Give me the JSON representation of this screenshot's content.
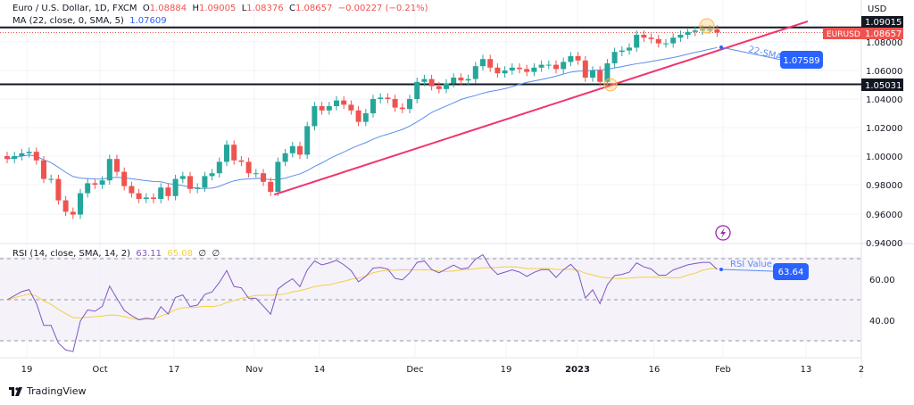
{
  "legend": {
    "symbol": "Euro / U.S. Dollar, 1D, FXCM",
    "o_label": "O",
    "o": "1.08884",
    "h_label": "H",
    "h": "1.09005",
    "l_label": "L",
    "l": "1.08376",
    "c_label": "C",
    "c": "1.08657",
    "change": "−0.00227 (−0.21%)",
    "ma": "MA (22, close, 0, SMA, 5)",
    "ma_value": "1.07609"
  },
  "rsi_legend": {
    "label": "RSI (14, close, SMA, 14, 2)",
    "rsi": "63.11",
    "sma": "65.08",
    "extra1": "∅",
    "extra2": "∅"
  },
  "price_axis": {
    "currency": "USD",
    "ticks": [
      "1.08000",
      "1.06000",
      "1.04000",
      "1.02000",
      "1.00000",
      "0.98000",
      "0.96000",
      "0.94000"
    ],
    "level_high": "1.09015",
    "level_low": "1.05031",
    "symbol_tag": "EURUSD",
    "last_price": "1.08657"
  },
  "rsi_axis": {
    "ticks": [
      "60.00",
      "40.00"
    ]
  },
  "time_axis": {
    "ticks": [
      "19",
      "Oct",
      "17",
      "Nov",
      "14",
      "Dec",
      "19",
      "2023",
      "16",
      "Feb",
      "13",
      "2"
    ]
  },
  "annotations": {
    "sma_label": "22-SMA",
    "sma_value": "1.07589",
    "rsi_label": "RSI Value",
    "rsi_value": "63.64"
  },
  "branding": {
    "logo": "TradingView"
  },
  "colors": {
    "up": "#26a69a",
    "down": "#ef5350",
    "ma": "#5b8def",
    "trend": "#f0356b",
    "rsi": "#7e57c2",
    "rsi_sma": "#f4d03f",
    "label_blue": "#2962ff"
  },
  "chart_data": {
    "type": "candlestick",
    "symbol": "EURUSD",
    "timeframe": "1D",
    "ylim": [
      0.94,
      1.1
    ],
    "rsi_levels": [
      70,
      30
    ],
    "horizontal_levels": [
      1.09015,
      1.05031
    ],
    "trendline": {
      "from": [
        "2022-11-03",
        0.973
      ],
      "to": [
        "2023-02-14",
        1.0944
      ]
    },
    "closes": [
      [
        "2022-09-14",
        0.998
      ],
      [
        "2022-09-15",
        1.0
      ],
      [
        "2022-09-16",
        1.002
      ],
      [
        "2022-09-19",
        1.003
      ],
      [
        "2022-09-20",
        0.997
      ],
      [
        "2022-09-21",
        0.984
      ],
      [
        "2022-09-22",
        0.984
      ],
      [
        "2022-09-23",
        0.969
      ],
      [
        "2022-09-26",
        0.961
      ],
      [
        "2022-09-27",
        0.959
      ],
      [
        "2022-09-28",
        0.974
      ],
      [
        "2022-09-29",
        0.981
      ],
      [
        "2022-09-30",
        0.98
      ],
      [
        "2022-10-03",
        0.983
      ],
      [
        "2022-10-04",
        0.998
      ],
      [
        "2022-10-05",
        0.989
      ],
      [
        "2022-10-06",
        0.979
      ],
      [
        "2022-10-07",
        0.974
      ],
      [
        "2022-10-10",
        0.97
      ],
      [
        "2022-10-11",
        0.971
      ],
      [
        "2022-10-12",
        0.97
      ],
      [
        "2022-10-13",
        0.978
      ],
      [
        "2022-10-14",
        0.972
      ],
      [
        "2022-10-17",
        0.984
      ],
      [
        "2022-10-18",
        0.986
      ],
      [
        "2022-10-19",
        0.977
      ],
      [
        "2022-10-20",
        0.978
      ],
      [
        "2022-10-21",
        0.986
      ],
      [
        "2022-10-24",
        0.988
      ],
      [
        "2022-10-25",
        0.996
      ],
      [
        "2022-10-26",
        1.008
      ],
      [
        "2022-10-27",
        0.997
      ],
      [
        "2022-10-28",
        0.996
      ],
      [
        "2022-10-31",
        0.988
      ],
      [
        "2022-11-01",
        0.988
      ],
      [
        "2022-11-02",
        0.982
      ],
      [
        "2022-11-03",
        0.975
      ],
      [
        "2022-11-04",
        0.996
      ],
      [
        "2022-11-07",
        1.002
      ],
      [
        "2022-11-08",
        1.007
      ],
      [
        "2022-11-09",
        1.001
      ],
      [
        "2022-11-10",
        1.021
      ],
      [
        "2022-11-11",
        1.035
      ],
      [
        "2022-11-14",
        1.032
      ],
      [
        "2022-11-15",
        1.035
      ],
      [
        "2022-11-16",
        1.039
      ],
      [
        "2022-11-17",
        1.036
      ],
      [
        "2022-11-18",
        1.032
      ],
      [
        "2022-11-21",
        1.024
      ],
      [
        "2022-11-22",
        1.03
      ],
      [
        "2022-11-23",
        1.04
      ],
      [
        "2022-11-24",
        1.041
      ],
      [
        "2022-11-25",
        1.04
      ],
      [
        "2022-11-28",
        1.034
      ],
      [
        "2022-11-29",
        1.033
      ],
      [
        "2022-11-30",
        1.04
      ],
      [
        "2022-12-01",
        1.052
      ],
      [
        "2022-12-02",
        1.054
      ],
      [
        "2022-12-05",
        1.049
      ],
      [
        "2022-12-06",
        1.047
      ],
      [
        "2022-12-07",
        1.051
      ],
      [
        "2022-12-08",
        1.055
      ],
      [
        "2022-12-09",
        1.053
      ],
      [
        "2022-12-12",
        1.054
      ],
      [
        "2022-12-13",
        1.063
      ],
      [
        "2022-12-14",
        1.068
      ],
      [
        "2022-12-15",
        1.062
      ],
      [
        "2022-12-16",
        1.058
      ],
      [
        "2022-12-19",
        1.06
      ],
      [
        "2022-12-20",
        1.062
      ],
      [
        "2022-12-21",
        1.061
      ],
      [
        "2022-12-22",
        1.059
      ],
      [
        "2022-12-23",
        1.062
      ],
      [
        "2022-12-26",
        1.064
      ],
      [
        "2022-12-27",
        1.064
      ],
      [
        "2022-12-28",
        1.061
      ],
      [
        "2022-12-29",
        1.066
      ],
      [
        "2022-12-30",
        1.07
      ],
      [
        "2023-01-02",
        1.067
      ],
      [
        "2023-01-03",
        1.055
      ],
      [
        "2023-01-04",
        1.06
      ],
      [
        "2023-01-05",
        1.052
      ],
      [
        "2023-01-06",
        1.065
      ],
      [
        "2023-01-09",
        1.073
      ],
      [
        "2023-01-10",
        1.074
      ],
      [
        "2023-01-11",
        1.076
      ],
      [
        "2023-01-12",
        1.085
      ],
      [
        "2023-01-13",
        1.083
      ],
      [
        "2023-01-16",
        1.082
      ],
      [
        "2023-01-17",
        1.079
      ],
      [
        "2023-01-18",
        1.079
      ],
      [
        "2023-01-19",
        1.083
      ],
      [
        "2023-01-20",
        1.085
      ],
      [
        "2023-01-23",
        1.087
      ],
      [
        "2023-01-24",
        1.088
      ],
      [
        "2023-01-25",
        1.0888
      ],
      [
        "2023-01-26",
        1.0888
      ],
      [
        "2023-01-27",
        1.08657
      ]
    ]
  }
}
